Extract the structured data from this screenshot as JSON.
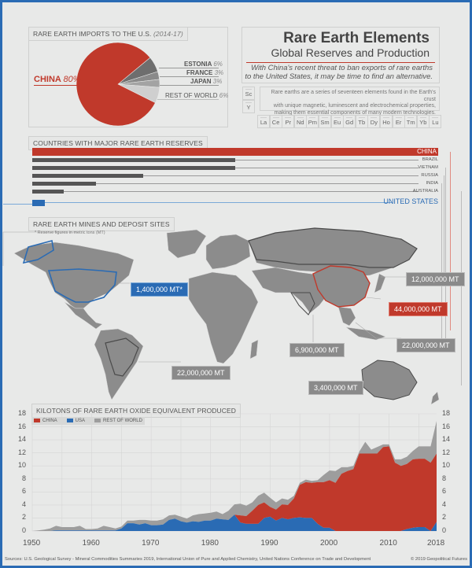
{
  "pie": {
    "title": "RARE EARTH IMPORTS TO THE U.S.",
    "title_years": "(2014-17)",
    "slices": [
      {
        "label": "CHINA",
        "pct": "80%",
        "value": 80,
        "color": "#c0392b"
      },
      {
        "label": "ESTONIA",
        "pct": "6%",
        "value": 6,
        "color": "#6e6e6e"
      },
      {
        "label": "FRANCE",
        "pct": "3%",
        "value": 3,
        "color": "#8a8a8a"
      },
      {
        "label": "JAPAN",
        "pct": "3%",
        "value": 3,
        "color": "#a3a3a3"
      },
      {
        "label": "REST OF WORLD",
        "pct": "6%",
        "value": 6,
        "color": "#cfcfcf"
      }
    ]
  },
  "header": {
    "title": "Rare Earth Elements",
    "subtitle": "Global Reserves and Production",
    "desc_line1": "With China's recent threat to ban exports of rare earths",
    "desc_line2": "to the United States, it may be time to find an alternative.",
    "info_line1": "Rare earths are a series of seventeen elements found in the Earth's crust",
    "info_line2": "with unique magnetic, luminescent and electrochemical properties,",
    "info_line3": "making them essential components of many modern technologies.",
    "elements_side": [
      "Sc",
      "Y"
    ],
    "elements_row": [
      "La",
      "Ce",
      "Pr",
      "Nd",
      "Pm",
      "Sm",
      "Eu",
      "Gd",
      "Tb",
      "Dy",
      "Ho",
      "Er",
      "Tm",
      "Yb",
      "Lu"
    ]
  },
  "reserves": {
    "title": "COUNTRIES WITH MAJOR RARE EARTH RESERVES",
    "countries": [
      {
        "name": "CHINA",
        "mt": 44000000,
        "color": "#c0392b"
      },
      {
        "name": "BRAZIL",
        "mt": 22000000,
        "color": "#555555"
      },
      {
        "name": "VIETNAM",
        "mt": 22000000,
        "color": "#555555"
      },
      {
        "name": "RUSSIA",
        "mt": 12000000,
        "color": "#555555"
      },
      {
        "name": "INDIA",
        "mt": 6900000,
        "color": "#555555"
      },
      {
        "name": "AUSTRALIA",
        "mt": 3400000,
        "color": "#555555"
      },
      {
        "name": "UNITED STATES",
        "mt": 1400000,
        "color": "#2a6bb4"
      }
    ]
  },
  "map": {
    "title": "RARE EARTH MINES AND DEPOSIT SITES",
    "note": "* Reserve figures in metric tons (MT)",
    "labels": {
      "us": "1,400,000 MT*",
      "russia": "12,000,000 MT",
      "china": "44,000,000 MT",
      "vietnam": "22,000,000 MT",
      "india": "6,900,000 MT",
      "brazil": "22,000,000 MT",
      "australia": "3,400,000 MT"
    }
  },
  "chart_data": {
    "type": "area",
    "title": "KILOTONS OF RARE EARTH OXIDE EQUIVALENT PRODUCED",
    "xlabel": "",
    "ylabel": "",
    "ylim": [
      0,
      18
    ],
    "yticks": [
      0,
      2,
      4,
      6,
      8,
      10,
      12,
      14,
      16,
      18
    ],
    "xticks": [
      1950,
      1960,
      1970,
      1980,
      1990,
      2000,
      2010,
      2018
    ],
    "grid": true,
    "stacked": true,
    "legend": [
      "CHINA",
      "USA",
      "REST OF WORLD"
    ],
    "legend_position": "top-left",
    "x": [
      1950,
      1951,
      1952,
      1953,
      1954,
      1955,
      1956,
      1957,
      1958,
      1959,
      1960,
      1961,
      1962,
      1963,
      1964,
      1965,
      1966,
      1967,
      1968,
      1969,
      1970,
      1971,
      1972,
      1973,
      1974,
      1975,
      1976,
      1977,
      1978,
      1979,
      1980,
      1981,
      1982,
      1983,
      1984,
      1985,
      1986,
      1987,
      1988,
      1989,
      1990,
      1991,
      1992,
      1993,
      1994,
      1995,
      1996,
      1997,
      1998,
      1999,
      2000,
      2001,
      2002,
      2003,
      2004,
      2005,
      2006,
      2007,
      2008,
      2009,
      2010,
      2011,
      2012,
      2013,
      2014,
      2015,
      2016,
      2017,
      2018
    ],
    "series": [
      {
        "name": "USA",
        "color": "#2a6bb4",
        "values": [
          0,
          0,
          0,
          0,
          0.1,
          0.1,
          0.1,
          0.1,
          0.1,
          0.1,
          0.1,
          0.1,
          0.1,
          0.1,
          0.1,
          0.4,
          1.2,
          1.2,
          1.0,
          1.2,
          0.9,
          0.9,
          1.0,
          1.7,
          1.9,
          1.5,
          1.3,
          1.5,
          1.4,
          1.6,
          1.6,
          1.9,
          1.8,
          1.7,
          2.5,
          1.3,
          1.1,
          1.1,
          1.1,
          2.0,
          2.2,
          1.6,
          2.0,
          1.8,
          2.0,
          2.1,
          2.0,
          2.0,
          1.1,
          0.5,
          0.5,
          0,
          0,
          0,
          0,
          0,
          0,
          0,
          0,
          0,
          0,
          0,
          0,
          0.3,
          0.5,
          0.6,
          0.6,
          0,
          1.4
        ]
      },
      {
        "name": "CHINA",
        "color": "#c0392b",
        "values": [
          0,
          0,
          0,
          0,
          0,
          0,
          0,
          0,
          0,
          0,
          0,
          0,
          0,
          0,
          0,
          0,
          0,
          0,
          0,
          0,
          0,
          0,
          0,
          0,
          0,
          0,
          0,
          0,
          0,
          0,
          0,
          0,
          0,
          0,
          0,
          1.1,
          1.2,
          2.0,
          2.9,
          2.4,
          1.5,
          1.7,
          2.1,
          2.2,
          3.0,
          5.0,
          5.5,
          5.4,
          6.4,
          7.0,
          7.3,
          7.4,
          8.8,
          9.2,
          9.5,
          11.9,
          11.9,
          11.9,
          11.9,
          12.9,
          13.0,
          10.5,
          10.0,
          10.0,
          10.5,
          10.5,
          10.5,
          10.5,
          10.5
        ]
      },
      {
        "name": "REST OF WORLD",
        "color": "#9d9d9d",
        "values": [
          0,
          0.1,
          0.2,
          0.4,
          0.7,
          0.5,
          0.5,
          0.5,
          0.7,
          0.2,
          0.2,
          0.3,
          0.7,
          0.5,
          0.3,
          0.3,
          0.4,
          0.4,
          0.7,
          0.5,
          0.7,
          0.7,
          0.8,
          0.7,
          0.6,
          0.7,
          0.6,
          0.9,
          1.2,
          1.1,
          1.2,
          1.1,
          0.8,
          1.4,
          1.6,
          1.8,
          1.6,
          1.3,
          1.4,
          1.5,
          1.4,
          1.1,
          0.9,
          0.8,
          0.4,
          0.3,
          0.4,
          0.3,
          0.3,
          1.1,
          1.5,
          1.8,
          1.0,
          0.6,
          0.5,
          0.3,
          1.8,
          0.6,
          1.0,
          0.4,
          0.3,
          0.5,
          1.0,
          1.1,
          1.3,
          1.9,
          1.9,
          2.5,
          5.0
        ]
      }
    ]
  },
  "footer": {
    "sources": "Sources: U.S. Geological Survey - Mineral Commodities Summaries 2019, International Union of Pure and Applied Chemistry, United Nations Conference on Trade and Development",
    "copyright": "© 2019 Geopolitical Futures"
  }
}
